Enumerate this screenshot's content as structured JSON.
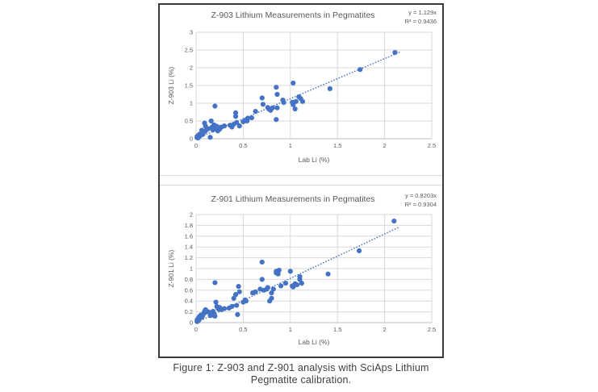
{
  "figure": {
    "caption_line1": "Figure 1: Z-903 and Z-901 analysis with SciAps Lithium",
    "caption_line2": "Pegmatite calibration."
  },
  "colors": {
    "marker": "#4472c4",
    "trendline": "#4472c4",
    "gridline": "#d9d9d9",
    "axis_text": "#595959",
    "title_text": "#595959",
    "figure_border": "#3a3a3a"
  },
  "chart_data": [
    {
      "type": "scatter",
      "title": "Z-903 Lithium Measurements in Pegmatites",
      "equation": "y = 1.129x",
      "r_squared": "R² = 0.9436",
      "xlabel": "Lab Li (%)",
      "ylabel": "Z-903 Li (%)",
      "xlim": [
        0,
        2.5
      ],
      "ylim": [
        0,
        3
      ],
      "xticks": [
        0,
        0.5,
        1,
        1.5,
        2,
        2.5
      ],
      "yticks": [
        0,
        0.5,
        1,
        1.5,
        2,
        2.5,
        3
      ],
      "grid": true,
      "legend": "none",
      "trendline": {
        "slope": 1.129,
        "x_start": 0.03,
        "x_end": 2.16,
        "style": "dotted"
      },
      "points": [
        [
          0.01,
          0.03
        ],
        [
          0.01,
          0.06
        ],
        [
          0.02,
          0.02
        ],
        [
          0.02,
          0.08
        ],
        [
          0.03,
          0.05
        ],
        [
          0.03,
          0.11
        ],
        [
          0.04,
          0.08
        ],
        [
          0.04,
          0.13
        ],
        [
          0.05,
          0.1
        ],
        [
          0.06,
          0.15
        ],
        [
          0.06,
          0.24
        ],
        [
          0.07,
          0.12
        ],
        [
          0.08,
          0.18
        ],
        [
          0.09,
          0.44
        ],
        [
          0.1,
          0.35
        ],
        [
          0.1,
          0.22
        ],
        [
          0.13,
          0.28
        ],
        [
          0.15,
          0.04
        ],
        [
          0.16,
          0.5
        ],
        [
          0.17,
          0.33
        ],
        [
          0.18,
          0.25
        ],
        [
          0.19,
          0.39
        ],
        [
          0.2,
          0.92
        ],
        [
          0.21,
          0.28
        ],
        [
          0.22,
          0.35
        ],
        [
          0.23,
          0.22
        ],
        [
          0.24,
          0.31
        ],
        [
          0.25,
          0.27
        ],
        [
          0.27,
          0.33
        ],
        [
          0.3,
          0.36
        ],
        [
          0.36,
          0.38
        ],
        [
          0.38,
          0.33
        ],
        [
          0.4,
          0.41
        ],
        [
          0.42,
          0.73
        ],
        [
          0.42,
          0.63
        ],
        [
          0.43,
          0.46
        ],
        [
          0.46,
          0.36
        ],
        [
          0.5,
          0.48
        ],
        [
          0.52,
          0.52
        ],
        [
          0.54,
          0.5
        ],
        [
          0.55,
          0.58
        ],
        [
          0.59,
          0.59
        ],
        [
          0.63,
          0.77
        ],
        [
          0.7,
          1.15
        ],
        [
          0.71,
          0.97
        ],
        [
          0.76,
          0.88
        ],
        [
          0.77,
          0.84
        ],
        [
          0.79,
          0.8
        ],
        [
          0.81,
          0.87
        ],
        [
          0.85,
          0.54
        ],
        [
          0.85,
          1.45
        ],
        [
          0.86,
          1.25
        ],
        [
          0.86,
          0.87
        ],
        [
          0.92,
          1.09
        ],
        [
          0.93,
          1.02
        ],
        [
          1.02,
          1.03
        ],
        [
          1.03,
          0.96
        ],
        [
          1.03,
          1.57
        ],
        [
          1.05,
          0.84
        ],
        [
          1.06,
          1.05
        ],
        [
          1.09,
          1.18
        ],
        [
          1.11,
          1.13
        ],
        [
          1.13,
          1.05
        ],
        [
          1.42,
          1.41
        ],
        [
          1.74,
          1.95
        ],
        [
          2.11,
          2.43
        ]
      ]
    },
    {
      "type": "scatter",
      "title": "Z-901 Lithium Measurements in Pegmatites",
      "equation": "y = 0.8203x",
      "r_squared": "R² = 0.9304",
      "xlabel": "Lab Li (%)",
      "ylabel": "Z-901 Li (%)",
      "xlim": [
        0,
        2.5
      ],
      "ylim": [
        0,
        2
      ],
      "xticks": [
        0,
        0.5,
        1,
        1.5,
        2,
        2.5
      ],
      "yticks": [
        0,
        0.2,
        0.4,
        0.6,
        0.8,
        1,
        1.2,
        1.4,
        1.6,
        1.8,
        2
      ],
      "grid": true,
      "legend": "none",
      "trendline": {
        "slope": 0.8203,
        "x_start": 0.05,
        "x_end": 2.16,
        "style": "dotted"
      },
      "points": [
        [
          0.01,
          0.02
        ],
        [
          0.01,
          0.05
        ],
        [
          0.02,
          0.03
        ],
        [
          0.02,
          0.07
        ],
        [
          0.03,
          0.05
        ],
        [
          0.03,
          0.1
        ],
        [
          0.04,
          0.08
        ],
        [
          0.04,
          0.12
        ],
        [
          0.05,
          0.14
        ],
        [
          0.06,
          0.1
        ],
        [
          0.07,
          0.13
        ],
        [
          0.08,
          0.17
        ],
        [
          0.09,
          0.21
        ],
        [
          0.1,
          0.19
        ],
        [
          0.1,
          0.24
        ],
        [
          0.13,
          0.2
        ],
        [
          0.15,
          0.13
        ],
        [
          0.16,
          0.17
        ],
        [
          0.17,
          0.14
        ],
        [
          0.18,
          0.21
        ],
        [
          0.19,
          0.16
        ],
        [
          0.2,
          0.12
        ],
        [
          0.2,
          0.74
        ],
        [
          0.21,
          0.38
        ],
        [
          0.22,
          0.3
        ],
        [
          0.23,
          0.27
        ],
        [
          0.24,
          0.25
        ],
        [
          0.25,
          0.28
        ],
        [
          0.27,
          0.24
        ],
        [
          0.3,
          0.26
        ],
        [
          0.35,
          0.27
        ],
        [
          0.38,
          0.3
        ],
        [
          0.4,
          0.45
        ],
        [
          0.42,
          0.52
        ],
        [
          0.43,
          0.32
        ],
        [
          0.44,
          0.15
        ],
        [
          0.45,
          0.67
        ],
        [
          0.46,
          0.57
        ],
        [
          0.5,
          0.38
        ],
        [
          0.52,
          0.42
        ],
        [
          0.53,
          0.4
        ],
        [
          0.6,
          0.55
        ],
        [
          0.63,
          0.57
        ],
        [
          0.68,
          0.62
        ],
        [
          0.7,
          0.8
        ],
        [
          0.7,
          1.12
        ],
        [
          0.72,
          0.6
        ],
        [
          0.75,
          0.62
        ],
        [
          0.76,
          0.65
        ],
        [
          0.78,
          0.4
        ],
        [
          0.8,
          0.45
        ],
        [
          0.8,
          0.55
        ],
        [
          0.82,
          0.62
        ],
        [
          0.85,
          0.92
        ],
        [
          0.85,
          0.95
        ],
        [
          0.87,
          0.9
        ],
        [
          0.88,
          0.97
        ],
        [
          0.9,
          0.68
        ],
        [
          0.95,
          0.73
        ],
        [
          1.0,
          0.95
        ],
        [
          1.02,
          0.68
        ],
        [
          1.03,
          0.66
        ],
        [
          1.05,
          0.72
        ],
        [
          1.07,
          0.7
        ],
        [
          1.1,
          0.8
        ],
        [
          1.1,
          0.85
        ],
        [
          1.12,
          0.73
        ],
        [
          1.4,
          0.9
        ],
        [
          1.73,
          1.33
        ],
        [
          2.1,
          1.88
        ]
      ]
    }
  ]
}
